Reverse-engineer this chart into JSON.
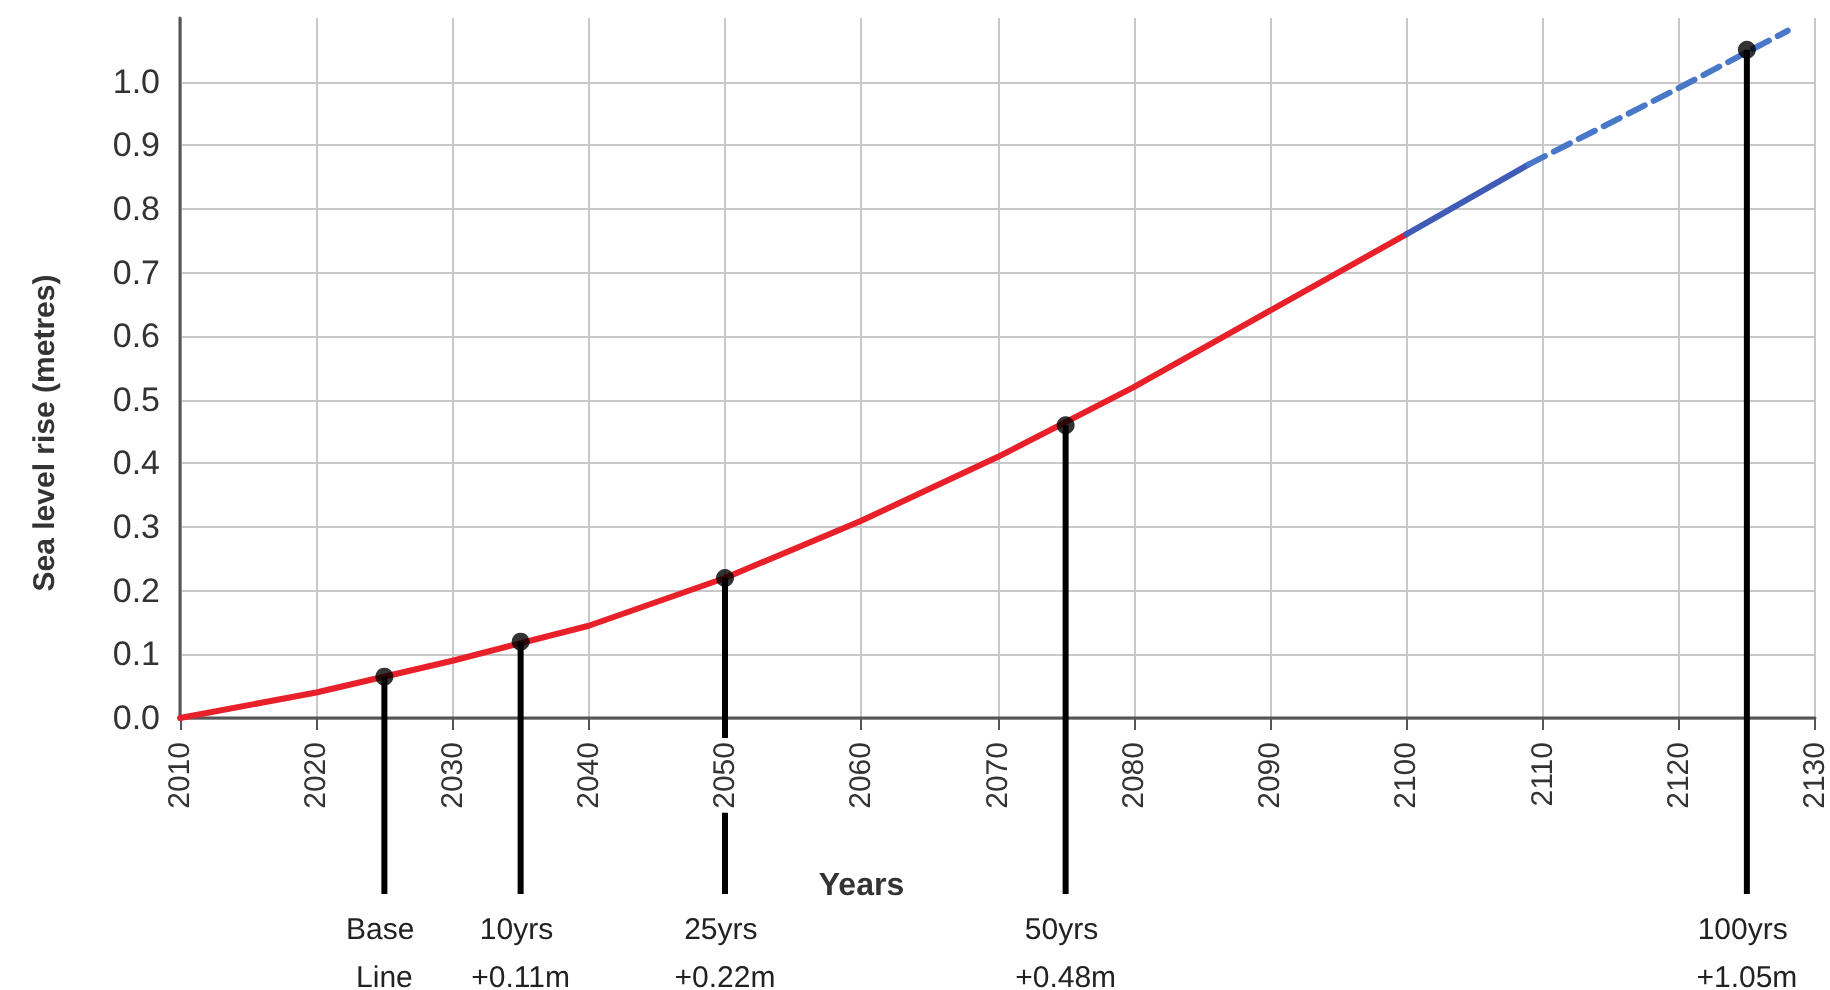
{
  "chart_data": {
    "type": "line",
    "xlabel": "Years",
    "ylabel": "Sea level rise (metres)",
    "xlim": [
      2010,
      2130
    ],
    "xticks": [
      2010,
      2020,
      2030,
      2040,
      2050,
      2060,
      2070,
      2080,
      2090,
      2100,
      2110,
      2120,
      2130
    ],
    "ylim": [
      0,
      1.1
    ],
    "yticks": [
      {
        "value": 0,
        "label": "0.0"
      },
      {
        "value": 0.1,
        "label": "0.1"
      },
      {
        "value": 0.2,
        "label": "0.2"
      },
      {
        "value": 0.3,
        "label": "0.3"
      },
      {
        "value": 0.4,
        "label": "0.4"
      },
      {
        "value": 0.5,
        "label": "0.5"
      },
      {
        "value": 0.6,
        "label": "0.6"
      },
      {
        "value": 0.7,
        "label": "0.7"
      },
      {
        "value": 0.8,
        "label": "0.8"
      },
      {
        "value": 0.9,
        "label": "0.9"
      },
      {
        "value": 1,
        "label": "1.0"
      }
    ],
    "grid": true,
    "marker": "none",
    "series": [
      {
        "color": "#e8202a",
        "line_style": "solid",
        "x": [
          2010,
          2020,
          2030,
          2040,
          2050,
          2060,
          2070,
          2080,
          2090,
          2100
        ],
        "values": [
          0,
          0.04,
          0.09,
          0.145,
          0.22,
          0.31,
          0.41,
          0.52,
          0.64,
          0.76
        ]
      },
      {
        "color": "#3f5bb5",
        "line_style": "solid",
        "x": [
          2100,
          2109
        ],
        "values": [
          0.76,
          0.87
        ]
      },
      {
        "color": "#4a78c8",
        "line_style": "dashed",
        "x": [
          2109,
          2120,
          2128
        ],
        "values": [
          0.87,
          0.99,
          1.08
        ]
      },
      {
        "type": "scatter",
        "marker": "circle",
        "color": "#000000",
        "x": [
          2025,
          2035,
          2050,
          2075,
          2125
        ],
        "values": [
          0.065,
          0.12,
          0.22,
          0.46,
          1.05
        ]
      }
    ],
    "annotations": [
      {
        "text": "Base Line",
        "x": 2025,
        "y": 0.065
      },
      {
        "text": "10yrs +0.11m",
        "x": 2035,
        "y": 0.12
      },
      {
        "text": "25yrs +0.22m",
        "x": 2050,
        "y": 0.22
      },
      {
        "text": "50yrs +0.48m",
        "x": 2075,
        "y": 0.46
      },
      {
        "text": "100yrs +1.05m",
        "x": 2125,
        "y": 1.05
      }
    ]
  }
}
